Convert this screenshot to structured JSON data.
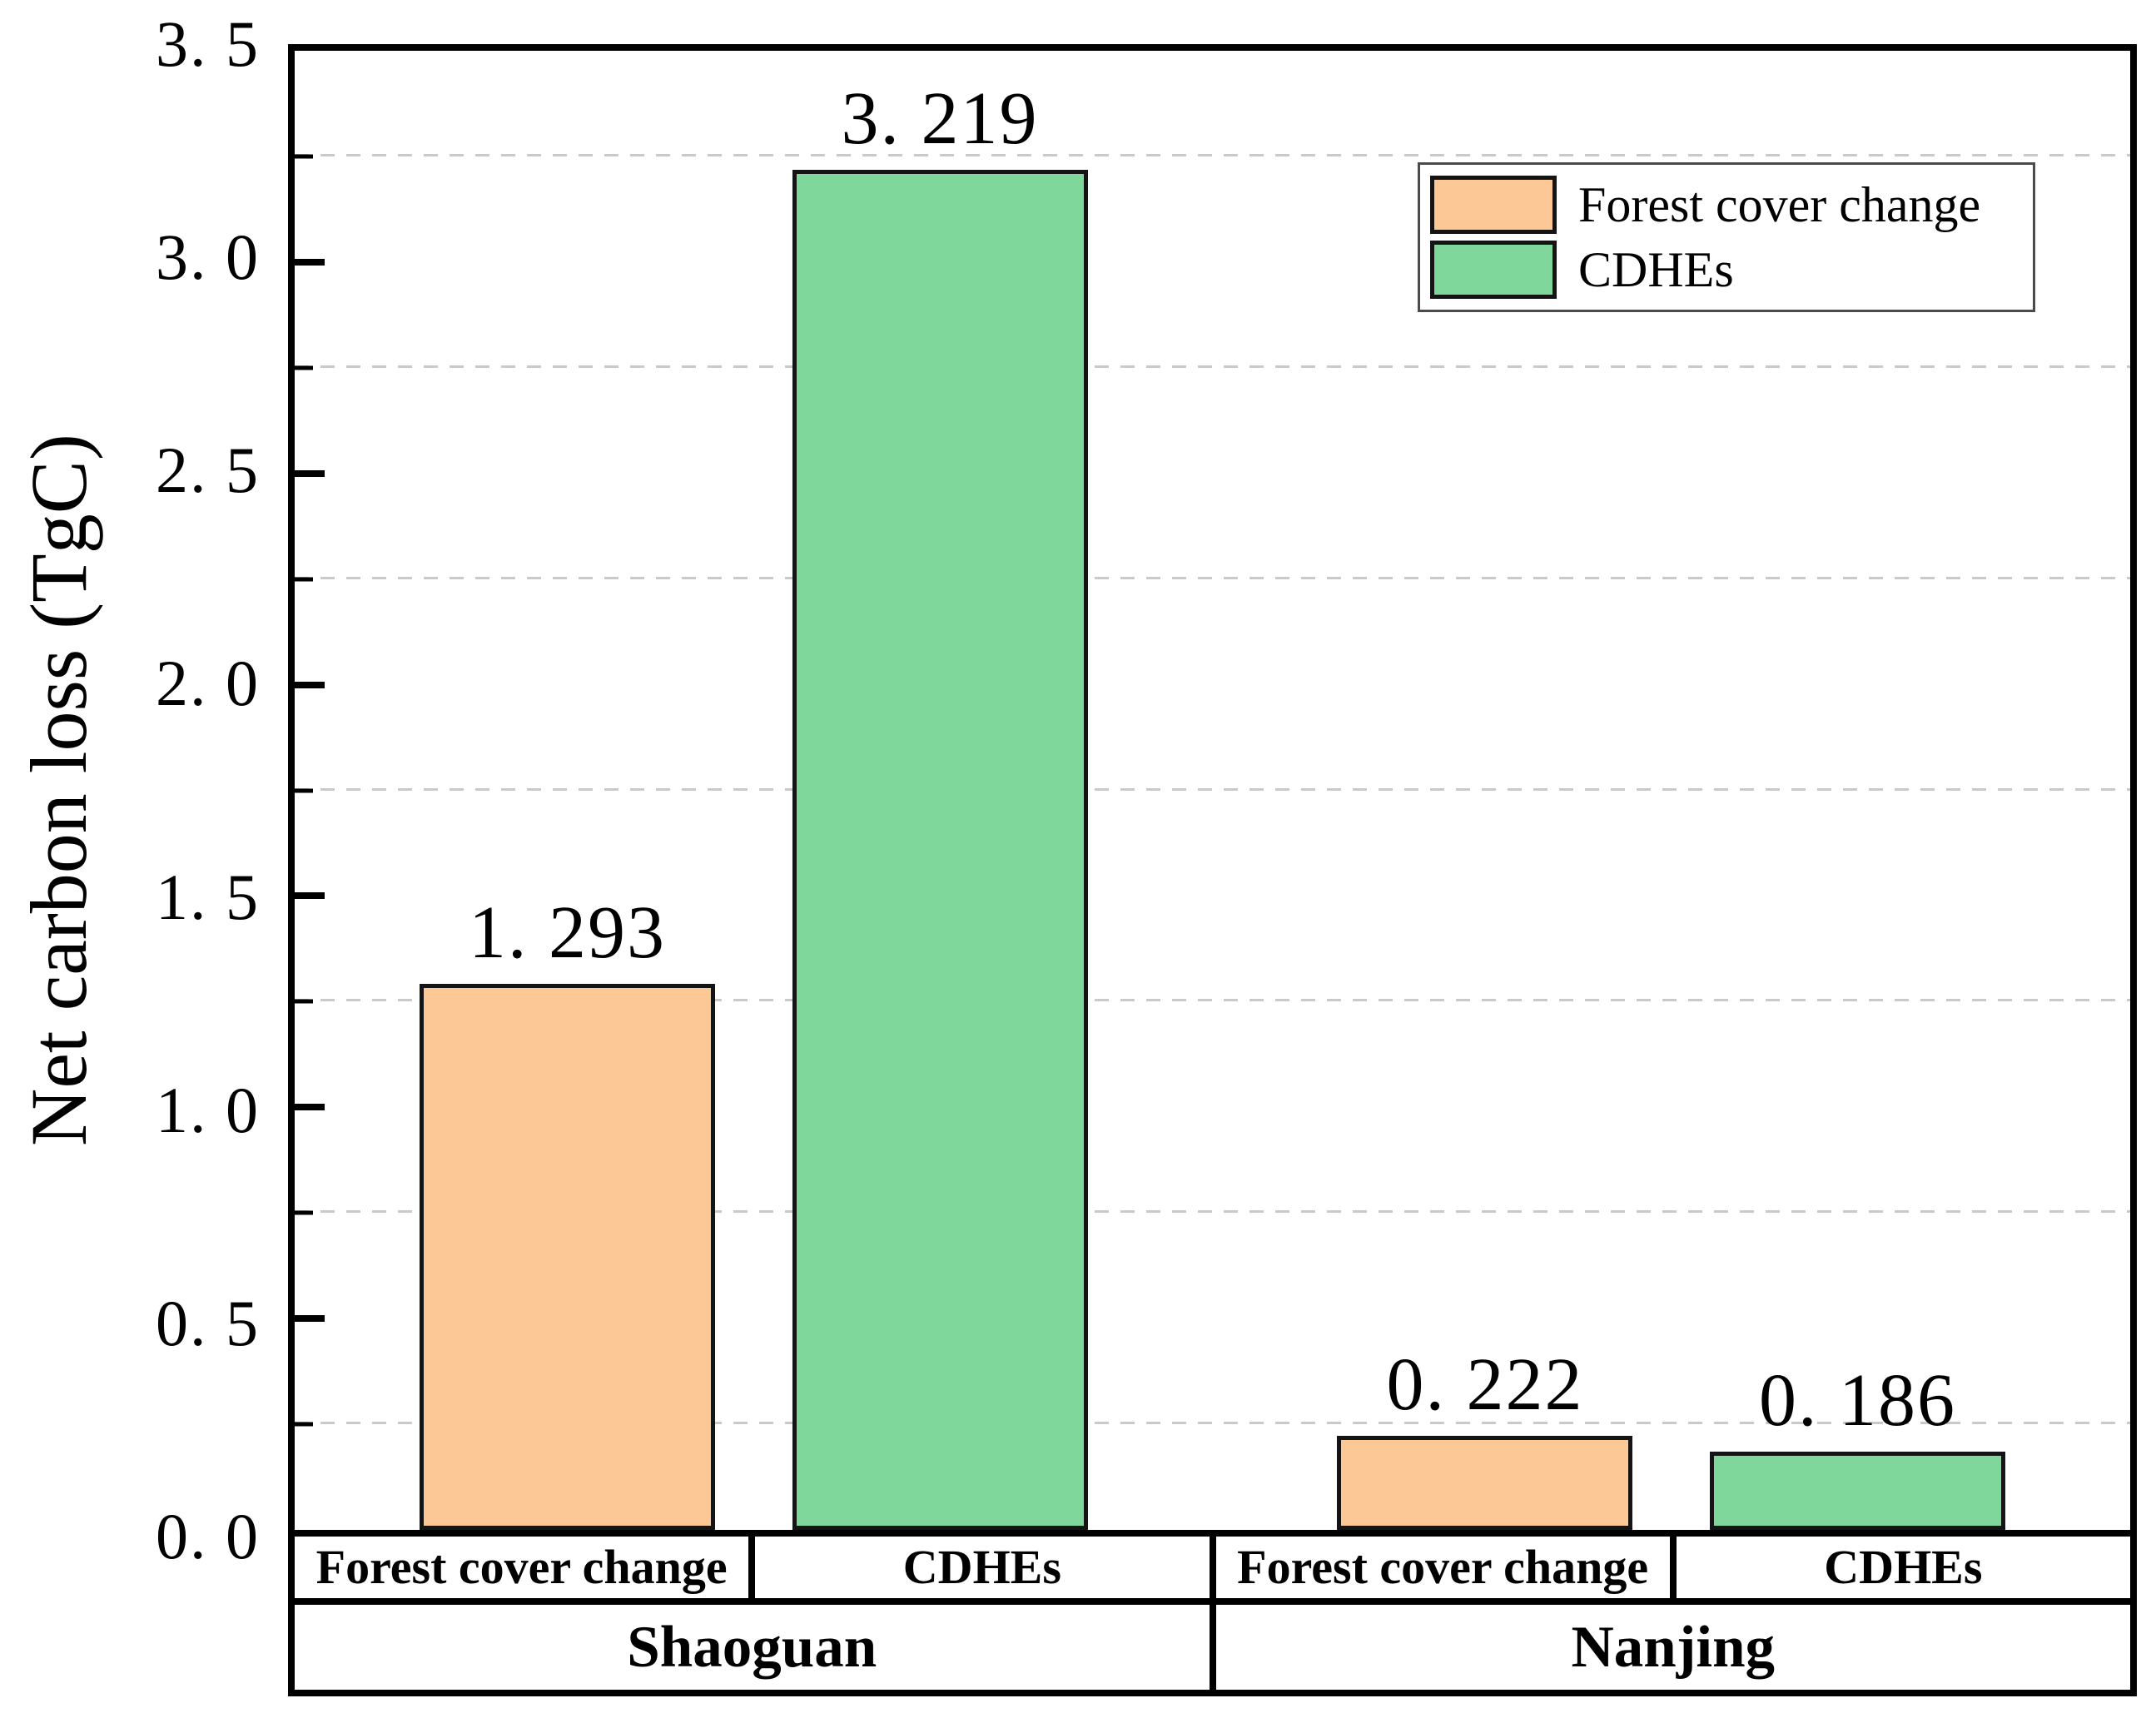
{
  "chart_data": {
    "type": "bar",
    "title": "",
    "ylabel": "Net carbon loss (TgC)",
    "xlabel": "",
    "ylim": [
      0,
      3.5
    ],
    "y_major_ticks": [
      0,
      0.5,
      1,
      1.5,
      2,
      2.5,
      3,
      3.5
    ],
    "y_major_tick_labels": [
      "0. 0",
      "0. 5",
      "1. 0",
      "1. 5",
      "2. 0",
      "2. 5",
      "3. 0",
      "3. 5"
    ],
    "y_minor_gridlines": [
      0.25,
      0.75,
      1.25,
      1.75,
      2.25,
      2.75,
      3.25
    ],
    "grid": {
      "style": "minor-dashed",
      "color": "#c9c9c9"
    },
    "groups": [
      "Shaoguan",
      "Nanjing"
    ],
    "categories": [
      "Forest cover change",
      "CDHEs"
    ],
    "series": [
      {
        "name": "Forest cover change",
        "color": "#FCC996",
        "values": [
          1.293,
          0.222
        ],
        "value_labels": [
          "1. 293",
          "0. 222"
        ]
      },
      {
        "name": "CDHEs",
        "color": "#7FD79B",
        "values": [
          3.219,
          0.186
        ],
        "value_labels": [
          "3. 219",
          "0. 186"
        ]
      }
    ],
    "legend": {
      "position": "top-right",
      "entries": [
        "Forest cover change",
        "CDHEs"
      ]
    },
    "x_axis_table": {
      "category_cells": [
        "Forest cover change",
        "CDHEs",
        "Forest cover change",
        "CDHEs"
      ],
      "group_cells": [
        "Shaoguan",
        "Nanjing"
      ]
    }
  }
}
